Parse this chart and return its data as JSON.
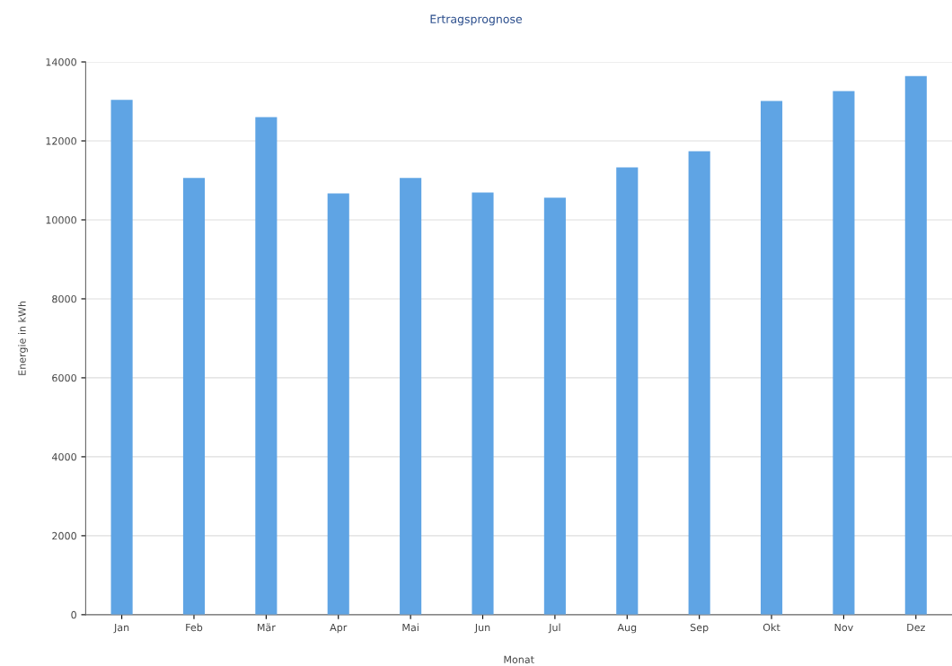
{
  "chart_data": {
    "type": "bar",
    "title": "Ertragsprognose",
    "xlabel": "Monat",
    "ylabel": "Energie in kWh",
    "categories": [
      "Jan",
      "Feb",
      "Mär",
      "Apr",
      "Mai",
      "Jun",
      "Jul",
      "Aug",
      "Sep",
      "Okt",
      "Nov",
      "Dez"
    ],
    "values": [
      13040,
      11060,
      12600,
      10670,
      11060,
      10690,
      10560,
      11330,
      11740,
      13010,
      13260,
      13640
    ],
    "color": "#5fa4e4",
    "ylim": [
      0,
      14000
    ],
    "yticks": [
      0,
      2000,
      4000,
      6000,
      8000,
      10000,
      12000,
      14000
    ],
    "grid": "y"
  }
}
